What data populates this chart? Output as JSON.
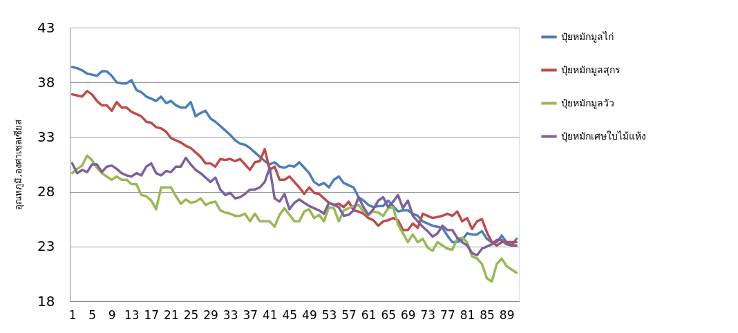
{
  "chart_data": {
    "type": "line",
    "ylabel": "อุณหภูมิ,องศาเซลเซียส",
    "x": [
      1,
      2,
      3,
      4,
      5,
      6,
      7,
      8,
      9,
      10,
      11,
      12,
      13,
      14,
      15,
      16,
      17,
      18,
      19,
      20,
      21,
      22,
      23,
      24,
      25,
      26,
      27,
      28,
      29,
      30,
      31,
      32,
      33,
      34,
      35,
      36,
      37,
      38,
      39,
      40,
      41,
      42,
      43,
      44,
      45,
      46,
      47,
      48,
      49,
      50,
      51,
      52,
      53,
      54,
      55,
      56,
      57,
      58,
      59,
      60,
      61,
      62,
      63,
      64,
      65,
      66,
      67,
      68,
      69,
      70,
      71,
      72,
      73,
      74,
      75,
      76,
      77,
      78,
      79,
      80,
      81,
      82,
      83,
      84,
      85,
      86,
      87,
      88,
      89,
      90,
      91
    ],
    "xlim": [
      0.5,
      91.5
    ],
    "xticks": [
      1,
      5,
      9,
      13,
      17,
      21,
      25,
      29,
      33,
      37,
      41,
      45,
      49,
      53,
      57,
      61,
      65,
      69,
      73,
      77,
      81,
      85,
      89
    ],
    "ylim": [
      18,
      43
    ],
    "yticks": [
      18,
      23,
      28,
      33,
      38,
      43
    ],
    "grid": "y",
    "legend": "right",
    "line_style": "solid",
    "marker": "none",
    "series": [
      {
        "name": "ปุ๋ยหมักมูลไก่",
        "color": "#4a7ebb",
        "values": [
          39.4,
          39.3,
          39.1,
          38.8,
          38.7,
          38.6,
          39.0,
          39.0,
          38.6,
          38.0,
          37.9,
          37.9,
          38.2,
          37.3,
          37.1,
          36.7,
          36.5,
          36.3,
          36.7,
          36.1,
          36.3,
          35.9,
          35.7,
          35.7,
          36.2,
          34.9,
          35.2,
          35.4,
          34.7,
          34.4,
          34.0,
          33.6,
          33.2,
          32.7,
          32.4,
          32.3,
          32.0,
          31.6,
          31.2,
          30.8,
          30.5,
          30.7,
          30.3,
          30.2,
          30.4,
          30.3,
          30.7,
          30.2,
          29.7,
          28.9,
          28.6,
          28.8,
          28.4,
          29.1,
          29.4,
          28.8,
          28.6,
          28.4,
          27.5,
          27.2,
          26.8,
          26.6,
          26.7,
          26.7,
          27.2,
          26.7,
          26.2,
          26.3,
          26.3,
          26.0,
          25.8,
          25.3,
          25.1,
          24.9,
          24.8,
          24.7,
          24.0,
          23.4,
          23.4,
          23.6,
          24.2,
          24.1,
          24.1,
          24.4,
          23.7,
          23.4,
          23.4,
          24.0,
          23.4,
          23.1,
          23.7
        ]
      },
      {
        "name": "ปุ๋ยหมักมูลสุกร",
        "color": "#be4b48",
        "values": [
          36.9,
          36.8,
          36.7,
          37.2,
          36.9,
          36.3,
          35.9,
          35.9,
          35.4,
          36.2,
          35.7,
          35.7,
          35.3,
          35.1,
          34.9,
          34.4,
          34.3,
          33.9,
          33.8,
          33.5,
          32.9,
          32.7,
          32.5,
          32.2,
          32.0,
          31.6,
          31.2,
          30.6,
          30.6,
          30.3,
          31.0,
          30.9,
          31.0,
          30.8,
          31.0,
          30.5,
          30.0,
          30.7,
          30.8,
          31.9,
          30.0,
          30.3,
          29.1,
          29.1,
          29.4,
          28.9,
          28.4,
          27.8,
          28.4,
          27.9,
          27.8,
          27.4,
          27.0,
          26.8,
          26.9,
          26.6,
          27.1,
          26.3,
          26.2,
          26.0,
          25.6,
          25.4,
          24.9,
          25.3,
          25.4,
          25.6,
          25.4,
          24.5,
          24.5,
          25.1,
          24.7,
          26.0,
          25.8,
          25.6,
          25.7,
          25.8,
          26.0,
          25.8,
          26.2,
          25.3,
          25.6,
          24.6,
          25.3,
          25.5,
          24.3,
          23.4,
          23.1,
          23.4,
          23.4,
          23.4,
          23.4
        ]
      },
      {
        "name": "ปุ๋ยหมักมูลวัว",
        "color": "#98b954",
        "values": [
          29.7,
          30.1,
          30.4,
          31.3,
          30.9,
          30.2,
          29.7,
          29.4,
          29.1,
          29.4,
          29.1,
          29.1,
          28.7,
          28.7,
          27.7,
          27.6,
          27.2,
          26.4,
          28.4,
          28.4,
          28.4,
          27.6,
          26.9,
          27.3,
          27.0,
          27.1,
          27.4,
          26.8,
          27.0,
          27.1,
          26.3,
          26.1,
          26.0,
          25.8,
          25.8,
          26.0,
          25.3,
          26.0,
          25.3,
          25.3,
          25.3,
          24.8,
          25.9,
          26.5,
          25.9,
          25.3,
          25.3,
          26.2,
          26.4,
          25.6,
          25.9,
          25.3,
          26.6,
          26.5,
          25.3,
          26.3,
          26.5,
          26.7,
          26.8,
          26.2,
          25.9,
          26.2,
          26.1,
          25.8,
          26.5,
          26.6,
          25.0,
          24.2,
          23.4,
          24.1,
          23.4,
          23.7,
          22.9,
          22.6,
          23.4,
          23.1,
          22.8,
          22.7,
          23.7,
          23.8,
          23.4,
          22.1,
          21.9,
          21.4,
          20.1,
          19.8,
          21.4,
          21.9,
          21.2,
          20.9,
          20.6
        ]
      },
      {
        "name": "ปุ๋ยหมักเศษใบไม้แห้ง",
        "color": "#7d60a0",
        "values": [
          30.6,
          29.7,
          30.0,
          29.8,
          30.5,
          30.5,
          29.8,
          30.3,
          30.4,
          30.1,
          29.7,
          29.5,
          29.4,
          29.7,
          29.5,
          30.3,
          30.6,
          29.7,
          29.5,
          29.9,
          29.8,
          30.3,
          30.3,
          31.1,
          30.5,
          30.0,
          29.7,
          29.3,
          28.9,
          29.3,
          28.2,
          27.7,
          27.9,
          27.4,
          27.5,
          27.8,
          28.2,
          28.2,
          28.4,
          28.9,
          30.2,
          27.4,
          27.1,
          27.8,
          26.4,
          27.0,
          27.3,
          27.0,
          26.7,
          26.5,
          26.3,
          26.0,
          27.0,
          26.8,
          26.6,
          25.8,
          25.9,
          26.3,
          27.5,
          26.6,
          25.9,
          26.4,
          27.2,
          27.5,
          26.6,
          27.1,
          27.7,
          26.5,
          27.2,
          25.8,
          25.3,
          24.8,
          24.4,
          23.9,
          24.2,
          24.9,
          24.5,
          24.5,
          23.8,
          23.4,
          23.1,
          22.4,
          22.2,
          22.8,
          23.0,
          23.2,
          23.6,
          23.6,
          23.2,
          23.1,
          23.1
        ]
      }
    ]
  }
}
